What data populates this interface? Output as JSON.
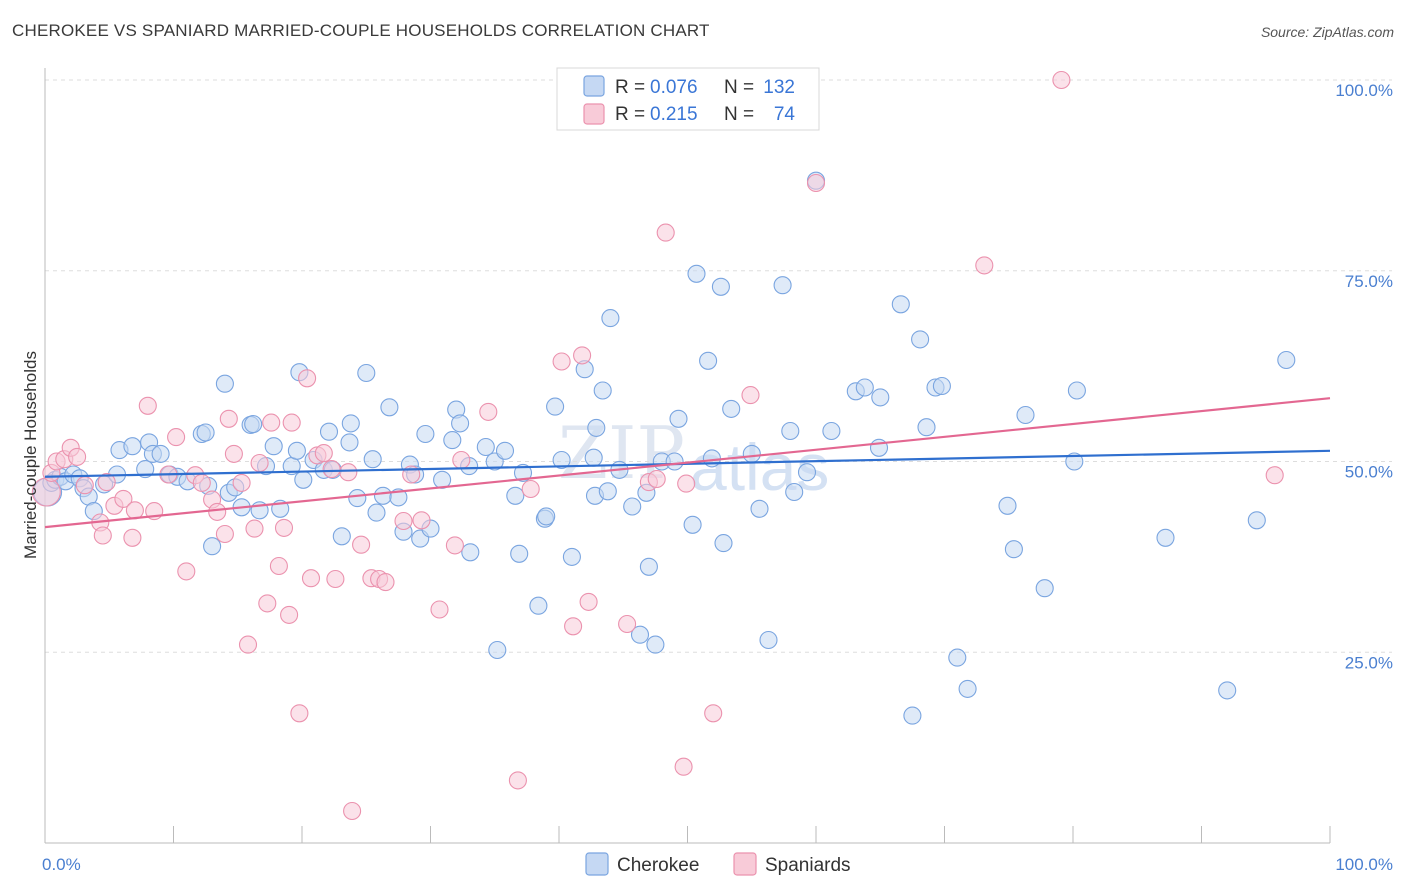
{
  "title": "CHEROKEE VS SPANIARD MARRIED-COUPLE HOUSEHOLDS CORRELATION CHART",
  "source": "Source: ZipAtlas.com",
  "watermark": {
    "zip": "ZIP",
    "atlas": "atlas"
  },
  "colors": {
    "cherokee_fill": "#c5d8f3",
    "cherokee_stroke": "#7aa5e0",
    "cherokee_line": "#2f6fcf",
    "spaniards_fill": "#f8cbd8",
    "spaniards_stroke": "#eb92ae",
    "spaniards_line": "#e36791",
    "tick_label": "#4a7fd0",
    "grid": "#dddddd"
  },
  "legend": {
    "rows": [
      {
        "r_label": "R = ",
        "r_value": "0.076",
        "n_label": "N = ",
        "n_value": "132"
      },
      {
        "r_label": "R = ",
        "r_value": " 0.215",
        "n_label": "N = ",
        "n_value": " 74"
      }
    ]
  },
  "bottom_legend": [
    "Cherokee",
    "Spaniards"
  ],
  "chart_data": {
    "type": "scatter",
    "title": "CHEROKEE VS SPANIARD MARRIED-COUPLE HOUSEHOLDS CORRELATION CHART",
    "xlabel": "",
    "ylabel": "Married-couple Households",
    "xlim": [
      0,
      100
    ],
    "ylim": [
      0,
      102
    ],
    "x_tick_labels": [
      "0.0%",
      "100.0%"
    ],
    "y_tick_labels": [
      "25.0%",
      "50.0%",
      "75.0%",
      "100.0%"
    ],
    "y_ticks": [
      25,
      50,
      75,
      100
    ],
    "grid": true,
    "legend_position": "top-center",
    "series": [
      {
        "name": "Cherokee",
        "R": 0.076,
        "N": 132,
        "trend": {
          "x": [
            0,
            100
          ],
          "y": [
            48.0,
            51.4
          ]
        },
        "points": [
          [
            0.2,
            46.0
          ],
          [
            0.5,
            47.2
          ],
          [
            0.8,
            47.6
          ],
          [
            1.2,
            48.0
          ],
          [
            1.6,
            47.4
          ],
          [
            2.2,
            48.3
          ],
          [
            2.7,
            47.8
          ],
          [
            3.0,
            46.5
          ],
          [
            3.4,
            45.4
          ],
          [
            3.8,
            43.5
          ],
          [
            4.6,
            47.0
          ],
          [
            5.6,
            48.3
          ],
          [
            5.8,
            51.5
          ],
          [
            6.8,
            52.0
          ],
          [
            7.8,
            49.0
          ],
          [
            8.1,
            52.5
          ],
          [
            8.4,
            51.0
          ],
          [
            9.0,
            51.0
          ],
          [
            9.7,
            48.3
          ],
          [
            10.3,
            48.0
          ],
          [
            11.1,
            47.4
          ],
          [
            12.2,
            53.6
          ],
          [
            12.5,
            53.8
          ],
          [
            12.7,
            46.8
          ],
          [
            13.0,
            38.9
          ],
          [
            14.0,
            60.2
          ],
          [
            14.3,
            45.9
          ],
          [
            14.8,
            46.6
          ],
          [
            15.3,
            44.0
          ],
          [
            16.0,
            54.8
          ],
          [
            16.2,
            54.9
          ],
          [
            16.7,
            43.6
          ],
          [
            17.2,
            49.4
          ],
          [
            17.8,
            52.0
          ],
          [
            18.3,
            43.8
          ],
          [
            19.2,
            49.4
          ],
          [
            19.6,
            51.4
          ],
          [
            19.8,
            61.7
          ],
          [
            20.1,
            47.6
          ],
          [
            20.9,
            50.2
          ],
          [
            21.7,
            48.9
          ],
          [
            22.1,
            53.9
          ],
          [
            22.4,
            48.9
          ],
          [
            23.1,
            40.2
          ],
          [
            23.7,
            52.5
          ],
          [
            23.8,
            55.0
          ],
          [
            24.3,
            45.2
          ],
          [
            25.0,
            61.6
          ],
          [
            25.5,
            50.3
          ],
          [
            25.8,
            43.3
          ],
          [
            26.3,
            45.5
          ],
          [
            26.8,
            57.1
          ],
          [
            27.5,
            45.3
          ],
          [
            27.9,
            40.8
          ],
          [
            28.4,
            49.6
          ],
          [
            28.8,
            48.3
          ],
          [
            29.2,
            39.9
          ],
          [
            29.6,
            53.6
          ],
          [
            30.0,
            41.2
          ],
          [
            30.9,
            47.6
          ],
          [
            31.7,
            52.8
          ],
          [
            32.0,
            56.8
          ],
          [
            32.3,
            55.0
          ],
          [
            33.0,
            49.4
          ],
          [
            33.1,
            38.1
          ],
          [
            34.3,
            51.9
          ],
          [
            35.0,
            50.0
          ],
          [
            35.2,
            25.3
          ],
          [
            35.8,
            51.4
          ],
          [
            36.6,
            45.5
          ],
          [
            36.9,
            37.9
          ],
          [
            37.2,
            48.5
          ],
          [
            38.4,
            31.1
          ],
          [
            38.9,
            42.5
          ],
          [
            39.0,
            42.8
          ],
          [
            39.7,
            57.2
          ],
          [
            40.2,
            50.2
          ],
          [
            41.0,
            37.5
          ],
          [
            42.0,
            62.1
          ],
          [
            42.7,
            50.5
          ],
          [
            42.8,
            45.5
          ],
          [
            42.9,
            54.4
          ],
          [
            43.4,
            59.3
          ],
          [
            43.8,
            46.1
          ],
          [
            44.0,
            68.8
          ],
          [
            45.7,
            44.1
          ],
          [
            46.3,
            27.3
          ],
          [
            46.8,
            45.9
          ],
          [
            47.0,
            36.2
          ],
          [
            48.0,
            50.0
          ],
          [
            49.0,
            50.0
          ],
          [
            49.3,
            55.6
          ],
          [
            50.4,
            41.7
          ],
          [
            50.7,
            74.6
          ],
          [
            51.6,
            63.2
          ],
          [
            51.9,
            50.4
          ],
          [
            52.6,
            72.9
          ],
          [
            52.8,
            39.3
          ],
          [
            53.4,
            56.9
          ],
          [
            55.0,
            51.0
          ],
          [
            55.6,
            43.8
          ],
          [
            56.3,
            26.6
          ],
          [
            57.4,
            73.1
          ],
          [
            58.0,
            54.0
          ],
          [
            58.3,
            46.0
          ],
          [
            59.3,
            48.6
          ],
          [
            60.0,
            86.8
          ],
          [
            61.2,
            54.0
          ],
          [
            63.1,
            59.2
          ],
          [
            63.8,
            59.7
          ],
          [
            64.9,
            51.8
          ],
          [
            65.0,
            58.4
          ],
          [
            66.6,
            70.6
          ],
          [
            67.5,
            16.7
          ],
          [
            68.1,
            66.0
          ],
          [
            68.6,
            54.5
          ],
          [
            69.3,
            59.7
          ],
          [
            69.8,
            59.9
          ],
          [
            71.0,
            24.3
          ],
          [
            71.8,
            20.2
          ],
          [
            74.9,
            44.2
          ],
          [
            75.4,
            38.5
          ],
          [
            76.3,
            56.1
          ],
          [
            77.8,
            33.4
          ],
          [
            80.1,
            50.0
          ],
          [
            80.3,
            59.3
          ],
          [
            87.2,
            40.0
          ],
          [
            94.3,
            42.3
          ],
          [
            96.6,
            63.3
          ],
          [
            92.0,
            20.0
          ],
          [
            47.5,
            26.0
          ],
          [
            44.7,
            48.9
          ]
        ]
      },
      {
        "name": "Spaniards",
        "R": 0.215,
        "N": 74,
        "trend": {
          "x": [
            0,
            100
          ],
          "y": [
            41.4,
            58.3
          ]
        },
        "points": [
          [
            0.1,
            46.0
          ],
          [
            0.5,
            48.5
          ],
          [
            0.9,
            50.0
          ],
          [
            1.5,
            50.3
          ],
          [
            2.0,
            51.8
          ],
          [
            2.5,
            50.6
          ],
          [
            3.1,
            46.9
          ],
          [
            4.3,
            42.0
          ],
          [
            4.5,
            40.3
          ],
          [
            4.8,
            47.3
          ],
          [
            5.4,
            44.2
          ],
          [
            6.1,
            45.1
          ],
          [
            6.8,
            40.0
          ],
          [
            7.0,
            43.6
          ],
          [
            8.0,
            57.3
          ],
          [
            8.5,
            43.5
          ],
          [
            9.6,
            48.3
          ],
          [
            10.2,
            53.2
          ],
          [
            11.0,
            35.6
          ],
          [
            11.7,
            48.2
          ],
          [
            12.2,
            47.2
          ],
          [
            13.0,
            45.0
          ],
          [
            13.4,
            43.4
          ],
          [
            14.0,
            40.5
          ],
          [
            14.3,
            55.6
          ],
          [
            14.7,
            51.0
          ],
          [
            15.3,
            47.2
          ],
          [
            15.8,
            26.0
          ],
          [
            16.3,
            41.2
          ],
          [
            16.7,
            49.8
          ],
          [
            17.3,
            31.4
          ],
          [
            17.6,
            55.1
          ],
          [
            18.2,
            36.3
          ],
          [
            18.6,
            41.3
          ],
          [
            19.0,
            29.9
          ],
          [
            19.2,
            55.1
          ],
          [
            19.8,
            17.0
          ],
          [
            20.4,
            60.9
          ],
          [
            20.7,
            34.7
          ],
          [
            21.2,
            50.8
          ],
          [
            21.7,
            51.1
          ],
          [
            22.3,
            49.0
          ],
          [
            22.6,
            34.6
          ],
          [
            23.6,
            48.6
          ],
          [
            23.9,
            4.2
          ],
          [
            24.6,
            39.1
          ],
          [
            25.4,
            34.7
          ],
          [
            26.0,
            34.6
          ],
          [
            26.5,
            34.2
          ],
          [
            27.9,
            42.2
          ],
          [
            28.5,
            48.3
          ],
          [
            29.3,
            42.3
          ],
          [
            30.7,
            30.6
          ],
          [
            31.9,
            39.0
          ],
          [
            32.4,
            50.2
          ],
          [
            34.5,
            56.5
          ],
          [
            36.8,
            8.2
          ],
          [
            37.8,
            46.4
          ],
          [
            40.2,
            63.1
          ],
          [
            41.1,
            28.4
          ],
          [
            41.8,
            63.9
          ],
          [
            42.3,
            31.6
          ],
          [
            45.3,
            28.7
          ],
          [
            47.0,
            47.3
          ],
          [
            47.6,
            47.7
          ],
          [
            48.3,
            80.0
          ],
          [
            49.7,
            10.0
          ],
          [
            49.9,
            47.1
          ],
          [
            52.0,
            17.0
          ],
          [
            54.9,
            58.7
          ],
          [
            60.0,
            86.5
          ],
          [
            73.1,
            75.7
          ],
          [
            79.1,
            100.0
          ],
          [
            95.7,
            48.2
          ]
        ]
      }
    ]
  }
}
